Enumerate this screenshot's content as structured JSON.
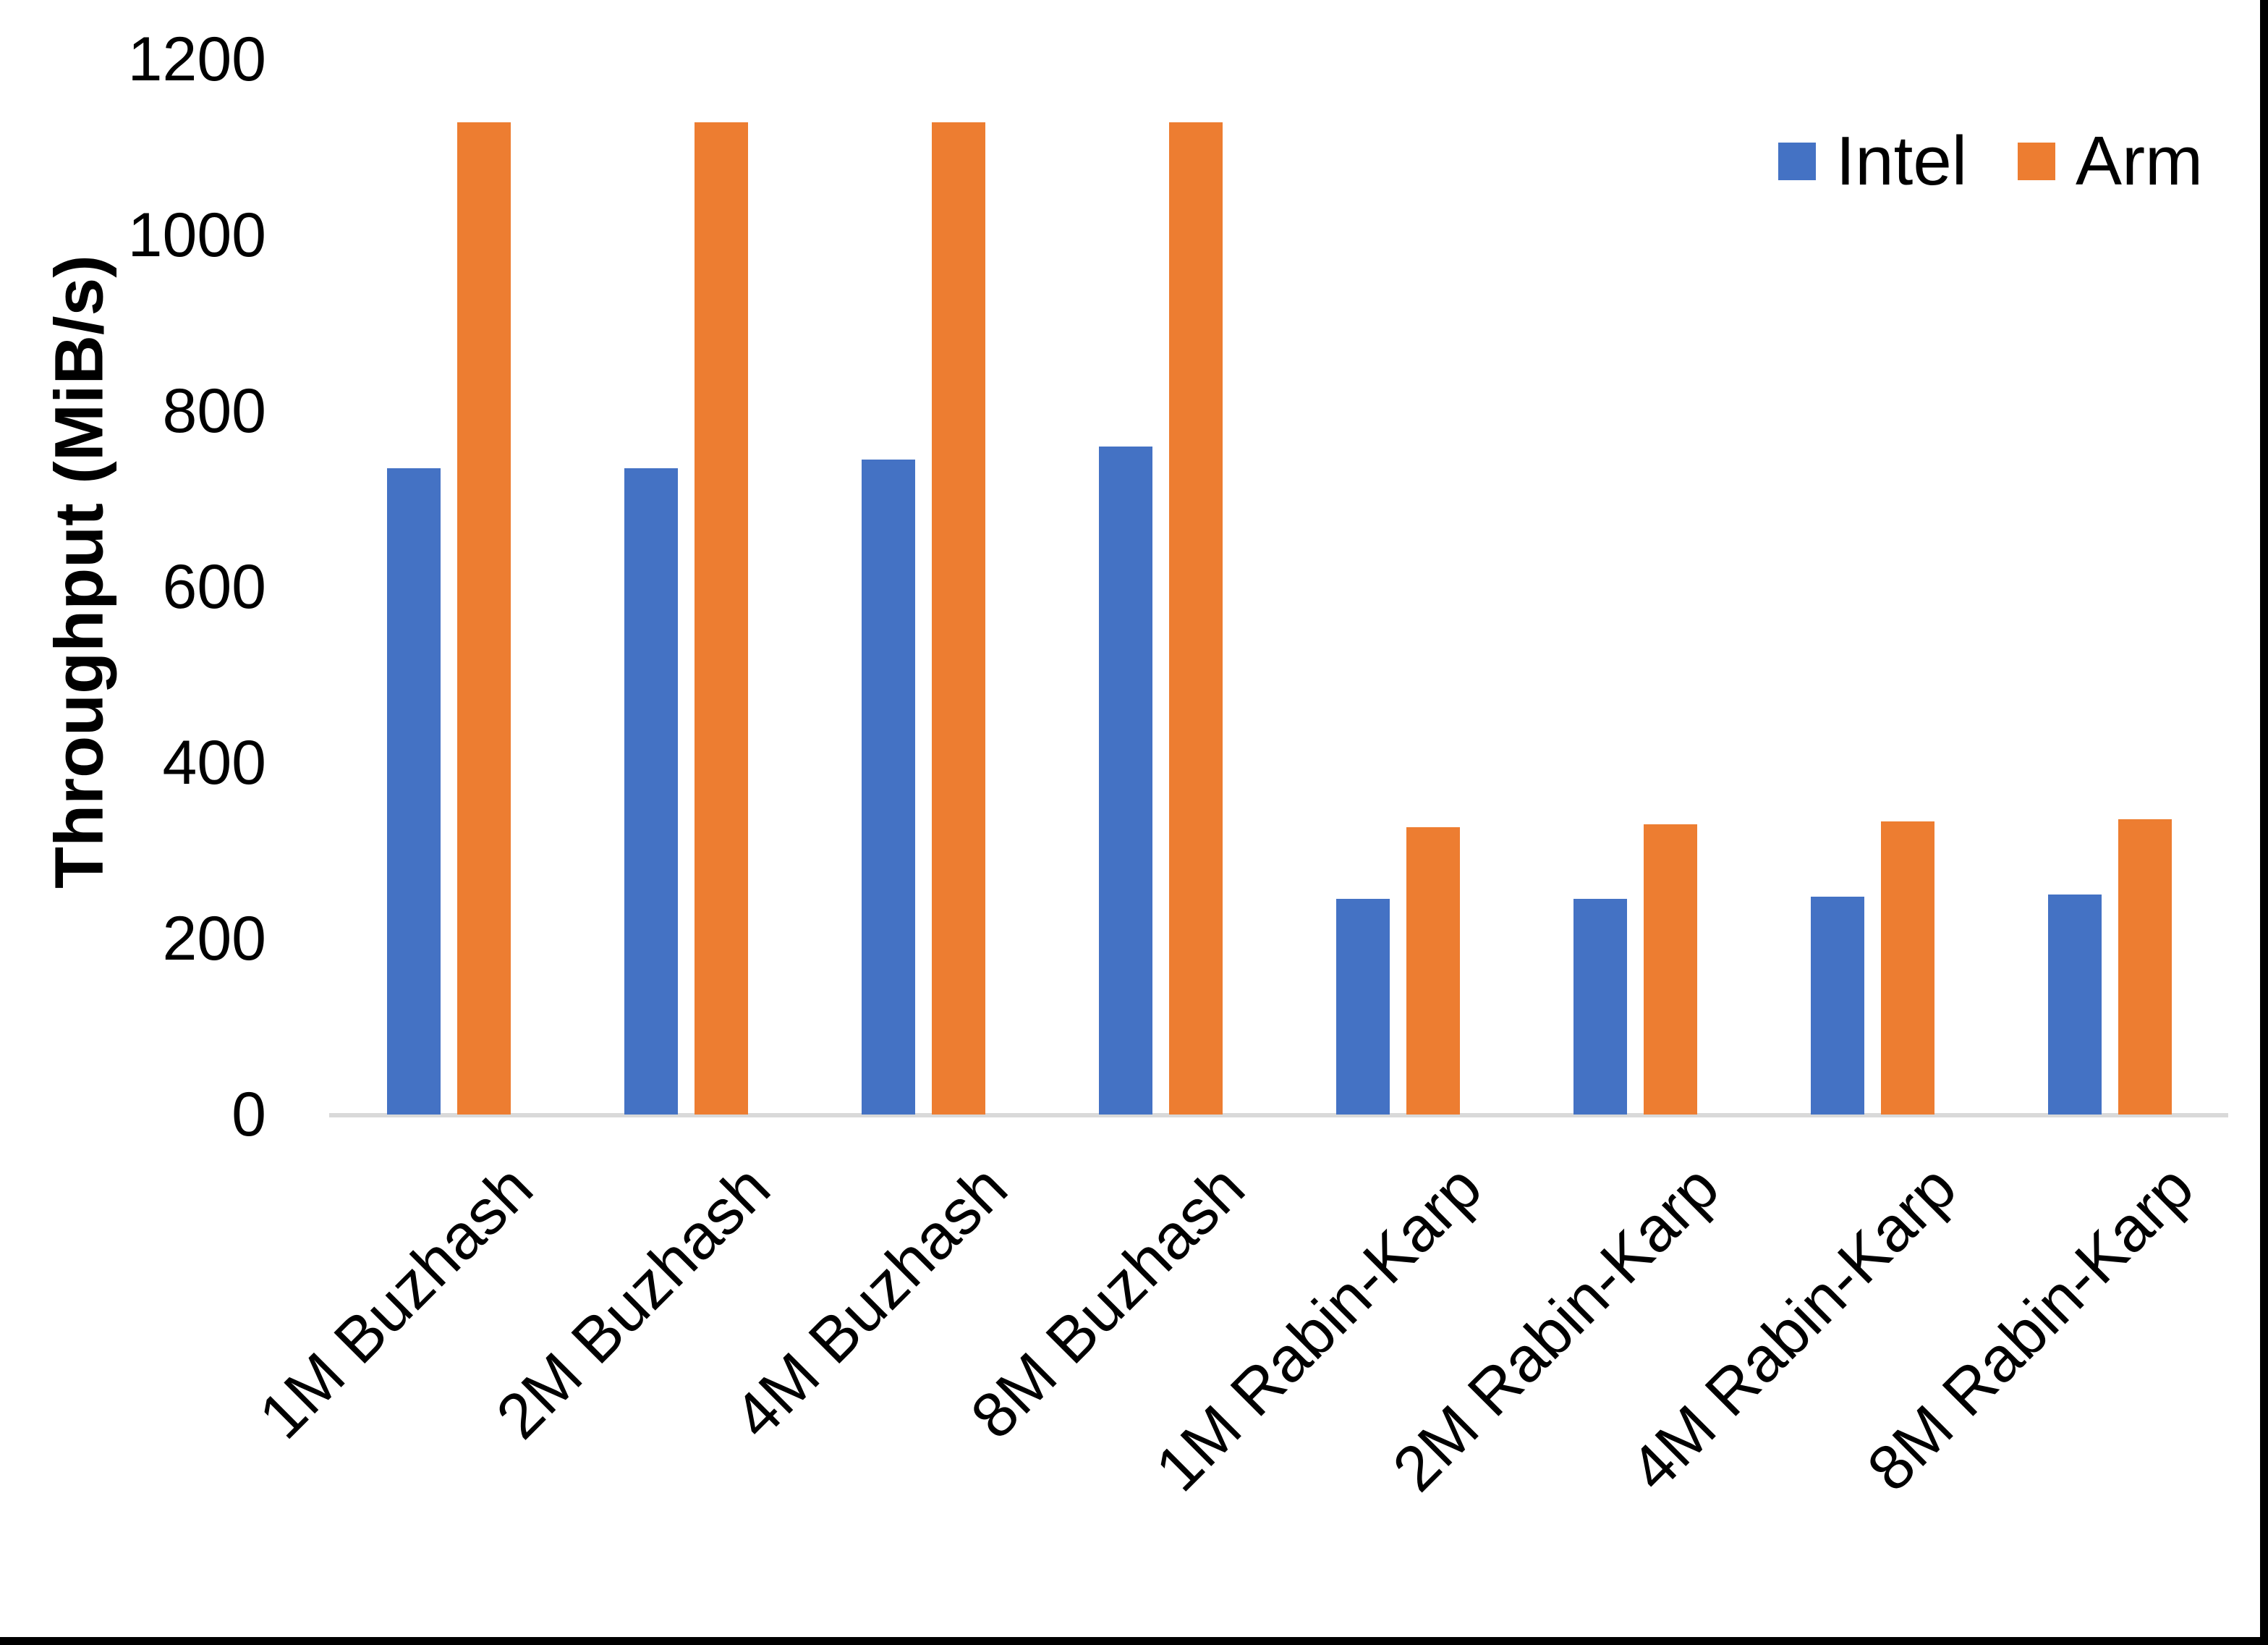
{
  "chart_data": {
    "type": "bar",
    "title": "",
    "ylabel": "Throughput (MiB/s)",
    "xlabel": "",
    "ylim": [
      0,
      1200
    ],
    "yticks": [
      0,
      200,
      400,
      600,
      800,
      1000,
      1200
    ],
    "grid": false,
    "legend_position": "top-right",
    "categories": [
      "1M Buzhash",
      "2M Buzhash",
      "4M Buzhash",
      "8M Buzhash",
      "1M Rabin-Karp",
      "2M Rabin-Karp",
      "4M Rabin-Karp",
      "8M Rabin-Karp"
    ],
    "series": [
      {
        "name": "Intel",
        "color": "#4472C4",
        "values": [
          735,
          735,
          745,
          760,
          245,
          245,
          248,
          250
        ]
      },
      {
        "name": "Arm",
        "color": "#ED7D31",
        "values": [
          1128,
          1128,
          1128,
          1128,
          327,
          330,
          333,
          336
        ]
      }
    ],
    "axis_line_color": "#D9D9D9",
    "text_color": "#000000",
    "page_border_color": "#000000"
  }
}
